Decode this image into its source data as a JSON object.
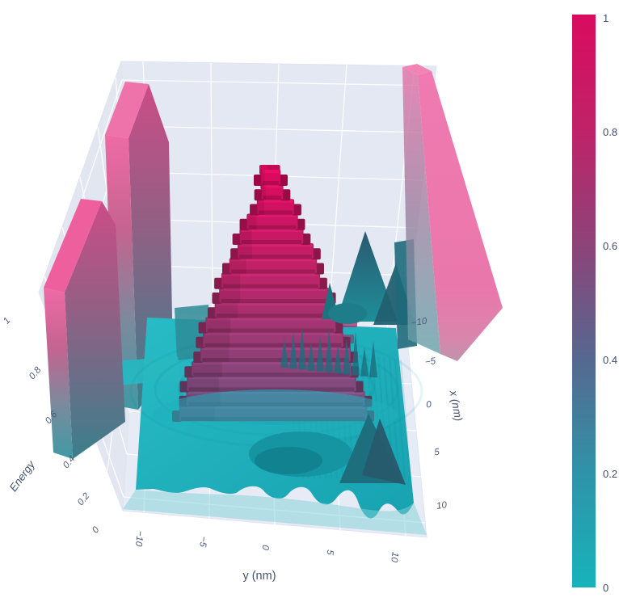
{
  "chart_data": {
    "type": "surface",
    "title": "",
    "description": "3D surface plot of an energy landscape: a central stepped (discretized) Gaussian peak reaching Energy = 1, tall rectangular barrier walls of Energy = 1 along the domain edges, and a flat teal basin near Energy = 0 with ripples and a few small sharp sub-peaks.",
    "xaxis": {
      "title": "x (nm)",
      "range": [
        -10,
        10
      ],
      "ticks": [
        "−10",
        "−5",
        "0",
        "5",
        "10"
      ]
    },
    "yaxis": {
      "title": "y (nm)",
      "range": [
        -10,
        10
      ],
      "ticks": [
        "−10",
        "−5",
        "0",
        "5",
        "10"
      ]
    },
    "zaxis": {
      "title": "Energy",
      "range": [
        0,
        1
      ],
      "ticks": [
        "0",
        "0.2",
        "0.4",
        "0.6",
        "0.8",
        "1"
      ]
    },
    "colorbar": {
      "min": 0,
      "max": 1,
      "ticks_top_to_bottom": [
        "1",
        "0.8",
        "0.6",
        "0.4",
        "0.2",
        "0"
      ]
    },
    "colorscale": [
      [
        0,
        "#17b3bb"
      ],
      [
        0.2,
        "#2f93a8"
      ],
      [
        0.4,
        "#56688f"
      ],
      [
        0.6,
        "#8d4379"
      ],
      [
        0.8,
        "#c02268"
      ],
      [
        1,
        "#d90b5f"
      ]
    ],
    "features": {
      "central_peak": {
        "shape": "stepped gaussian",
        "center": {
          "x": 0,
          "y": 0
        },
        "peak_energy": 1,
        "n_terraces": 17
      },
      "barrier_walls": [
        {
          "location": "y = -10 edge, rear section",
          "energy": 1
        },
        {
          "location": "y = -10 edge, front section",
          "energy": 1
        },
        {
          "location": "y = +10 edge",
          "energy": 1
        }
      ],
      "basin_energy": 0,
      "minor_peaks": {
        "region": "x ≈ 0…5, y ≈ 5…10",
        "approx_energy": 0.35
      }
    },
    "colors": {
      "scene_walls": "#e3e8f2",
      "scene_floor": "#e6ebf5",
      "grid": "#ffffff",
      "paper": "#ffffff",
      "barrier_pink_top": "#ef73ab",
      "barrier_pink_face": "#ee77ad",
      "basin_teal": "#1fb2bd",
      "label_color": "#4a5b7d"
    }
  }
}
